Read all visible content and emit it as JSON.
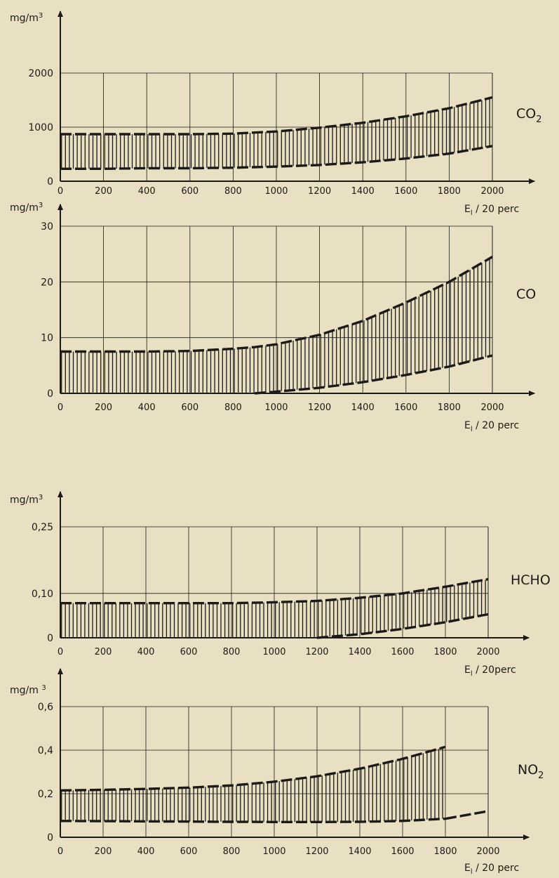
{
  "background": "#e9dfc2",
  "ink": "#1c1a16",
  "chart_data": [
    {
      "type": "area",
      "band_style": "vertical hatching between two dashed curves",
      "ylabel": "mg/m3",
      "xlabel": "E_l / 20 perc",
      "series_label": "CO2",
      "xlim": [
        0,
        2000
      ],
      "ylim": [
        0,
        2000
      ],
      "x_ticks": [
        "0",
        "200",
        "400",
        "600",
        "800",
        "1000",
        "1200",
        "1400",
        "1600",
        "1800",
        "2000"
      ],
      "y_ticks": [
        "0",
        "1000",
        "2000"
      ],
      "y_tick_values": [
        0,
        1000,
        2000
      ],
      "grid": true,
      "x": [
        0,
        200,
        400,
        600,
        800,
        1000,
        1200,
        1400,
        1600,
        1800,
        2000
      ],
      "upper": [
        870,
        870,
        870,
        870,
        880,
        920,
        990,
        1080,
        1200,
        1350,
        1550
      ],
      "lower": [
        230,
        230,
        240,
        240,
        250,
        270,
        300,
        350,
        420,
        510,
        650
      ]
    },
    {
      "type": "area",
      "band_style": "vertical hatching between two dashed curves",
      "ylabel": "mg/m3",
      "xlabel": "E_l / 20 perc",
      "series_label": "CO",
      "xlim": [
        0,
        2000
      ],
      "ylim": [
        0,
        30
      ],
      "x_ticks": [
        "0",
        "200",
        "400",
        "600",
        "800",
        "1000",
        "1200",
        "1400",
        "1600",
        "1800",
        "2000"
      ],
      "y_ticks": [
        "0",
        "10",
        "20",
        "30"
      ],
      "y_tick_values": [
        0,
        10,
        20,
        30
      ],
      "grid": true,
      "x": [
        0,
        200,
        400,
        600,
        800,
        900,
        1000,
        1200,
        1400,
        1600,
        1800,
        2000
      ],
      "upper": [
        7.5,
        7.5,
        7.5,
        7.6,
        8.0,
        8.3,
        8.8,
        10.5,
        13.0,
        16.3,
        20.0,
        24.5
      ],
      "lower": [
        0,
        0,
        0,
        0,
        0,
        0,
        0.3,
        1.0,
        2.0,
        3.3,
        4.8,
        6.8
      ]
    },
    {
      "type": "area",
      "band_style": "vertical hatching between two dashed curves",
      "ylabel": "mg/m3",
      "xlabel": "E_l / 20perc",
      "series_label": "HCHO",
      "xlim": [
        0,
        2000
      ],
      "ylim": [
        0,
        0.25
      ],
      "x_ticks": [
        "0",
        "200",
        "400",
        "600",
        "800",
        "1000",
        "1200",
        "1400",
        "1600",
        "1800",
        "2000"
      ],
      "y_ticks": [
        "0",
        "0,10",
        "0,25"
      ],
      "y_tick_values": [
        0,
        0.1,
        0.25
      ],
      "grid": true,
      "x": [
        0,
        200,
        400,
        600,
        800,
        1000,
        1200,
        1400,
        1600,
        1800,
        2000
      ],
      "upper": [
        0.078,
        0.078,
        0.078,
        0.078,
        0.078,
        0.08,
        0.083,
        0.09,
        0.1,
        0.115,
        0.132
      ],
      "lower": [
        0,
        0,
        0,
        0,
        0,
        0,
        0,
        0.008,
        0.02,
        0.035,
        0.053
      ]
    },
    {
      "type": "area",
      "band_style": "vertical hatching between two dashed curves",
      "ylabel": "mg/m 3",
      "xlabel": "E_l / 20 perc",
      "series_label": "NO2",
      "xlim": [
        0,
        2000
      ],
      "ylim": [
        0,
        0.6
      ],
      "x_ticks": [
        "0",
        "200",
        "400",
        "600",
        "800",
        "1000",
        "1200",
        "1400",
        "1600",
        "1800",
        "2000"
      ],
      "y_ticks": [
        "0",
        "0,2",
        "0,4",
        "0,6"
      ],
      "y_tick_values": [
        0,
        0.2,
        0.4,
        0.6
      ],
      "grid": true,
      "hatch_end_x": 1800,
      "x": [
        0,
        200,
        400,
        600,
        800,
        1000,
        1200,
        1400,
        1600,
        1800
      ],
      "upper": [
        0.215,
        0.218,
        0.222,
        0.228,
        0.238,
        0.255,
        0.28,
        0.315,
        0.36,
        0.415
      ],
      "lower": [
        0.075,
        0.074,
        0.073,
        0.072,
        0.071,
        0.07,
        0.07,
        0.071,
        0.075,
        0.085
      ],
      "lower_continued_x": [
        1800,
        2000
      ],
      "lower_continued": [
        0.085,
        0.12
      ]
    }
  ]
}
